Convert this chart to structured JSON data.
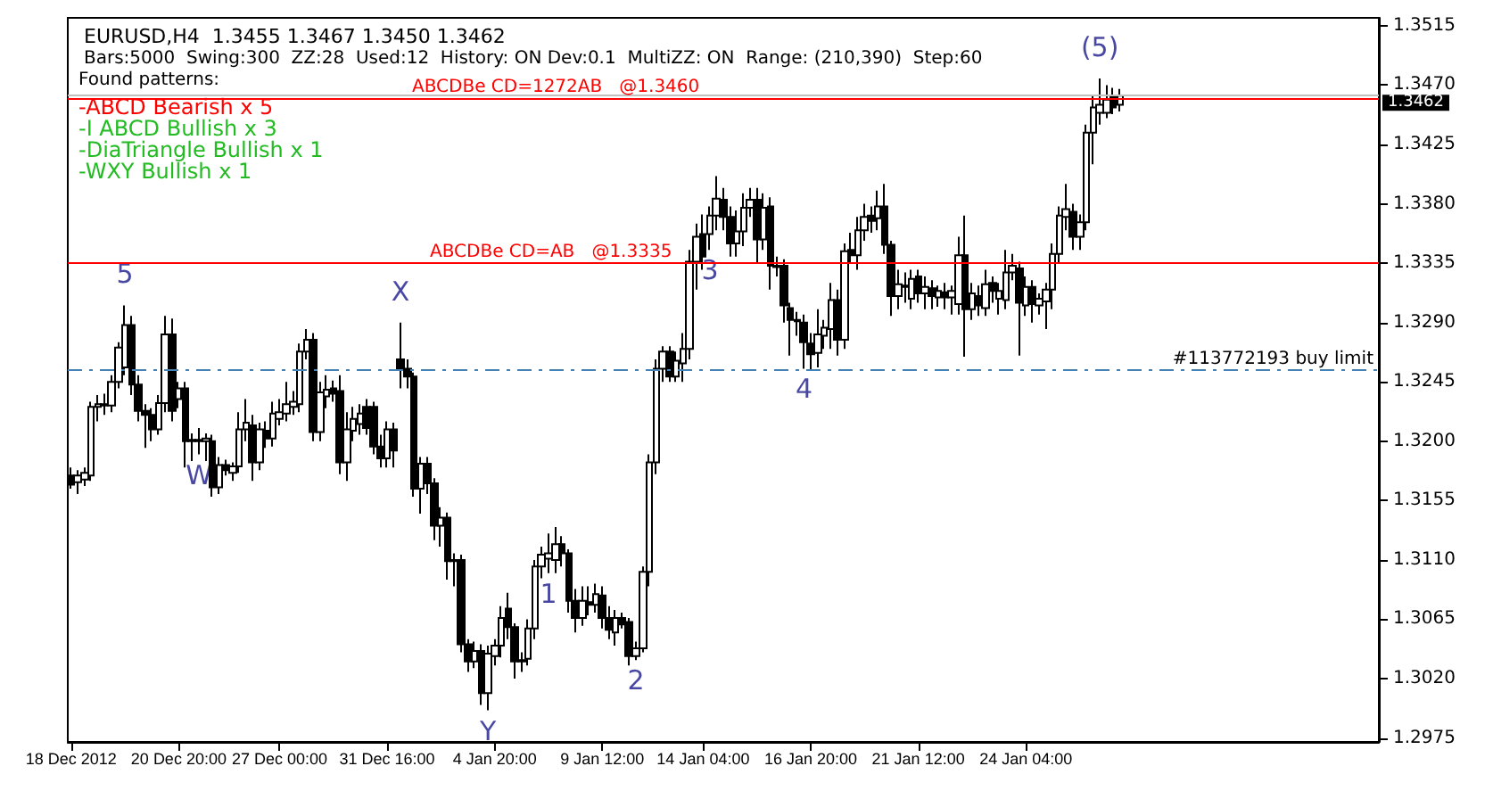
{
  "chart_data": {
    "type": "candlestick",
    "title": "EURUSD,H4  1.3455 1.3467 1.3450 1.3462",
    "subtitle": "Bars:5000  Swing:300  ZZ:28  Used:12  History: ON Dev:0.1  MultiZZ: ON  Range: (210,390)  Step:60",
    "annotations": [
      "Found patterns:",
      "-ABCD Bearish x 5",
      "-I ABCD Bullish x 3",
      "-DiaTriangle Bullish x 1",
      "-WXY Bullish x 1"
    ],
    "color": "#000000",
    "categories": [
      "18 Dec 2012",
      null,
      null,
      null,
      null,
      null,
      null,
      null,
      null,
      null,
      null,
      null,
      null,
      null,
      null,
      null,
      "20 Dec 20:00",
      null,
      null,
      null,
      null,
      null,
      null,
      null,
      null,
      null,
      null,
      null,
      null,
      null,
      null,
      "27 Dec 00:00",
      null,
      null,
      null,
      null,
      null,
      null,
      null,
      null,
      null,
      null,
      null,
      null,
      null,
      null,
      null,
      "31 Dec 16:00",
      null,
      null,
      null,
      null,
      null,
      null,
      null,
      null,
      null,
      null,
      null,
      null,
      null,
      null,
      null,
      "4 Jan 20:00",
      null,
      null,
      null,
      null,
      null,
      null,
      null,
      null,
      null,
      null,
      null,
      null,
      null,
      null,
      null,
      "9 Jan 12:00",
      null,
      null,
      null,
      null,
      null,
      null,
      null,
      null,
      null,
      null,
      null,
      null,
      null,
      null,
      "14 Jan 04:00",
      null,
      null,
      null,
      null,
      null,
      null,
      null,
      null,
      null,
      null,
      null,
      null,
      null,
      null,
      null,
      "16 Jan 20:00",
      null,
      null,
      null,
      null,
      null,
      null,
      null,
      null,
      null,
      null,
      null,
      null,
      null,
      null,
      null,
      "21 Jan 12:00",
      null,
      null,
      null,
      null,
      null,
      null,
      null,
      null,
      null,
      null,
      null,
      null,
      null,
      null,
      null,
      "24 Jan 04:00",
      null,
      null,
      null,
      null,
      null,
      null,
      null,
      null,
      null,
      null,
      null,
      null,
      null,
      null,
      null,
      null,
      null,
      null,
      null,
      null,
      null,
      null,
      null,
      null,
      null,
      null,
      null,
      null,
      null,
      null,
      null,
      null,
      null,
      null,
      null,
      null,
      null,
      null,
      null,
      null,
      null,
      null,
      null,
      null,
      null,
      null,
      null,
      null,
      null,
      null,
      null,
      null
    ],
    "ohlc": [
      [
        1.3174,
        1.318,
        1.3164,
        1.3167
      ],
      [
        1.3169,
        1.3178,
        1.316,
        1.3174
      ],
      [
        1.3171,
        1.318,
        1.3166,
        1.3176
      ],
      [
        1.3174,
        1.323,
        1.317,
        1.3226
      ],
      [
        1.3226,
        1.3235,
        1.3215,
        1.3228
      ],
      [
        1.3228,
        1.3236,
        1.322,
        1.3227
      ],
      [
        1.3227,
        1.325,
        1.3222,
        1.3245
      ],
      [
        1.3245,
        1.3275,
        1.324,
        1.3271
      ],
      [
        1.3256,
        1.3303,
        1.325,
        1.3288
      ],
      [
        1.3288,
        1.3295,
        1.3235,
        1.3243
      ],
      [
        1.3243,
        1.325,
        1.3215,
        1.3223
      ],
      [
        1.3223,
        1.3228,
        1.3195,
        1.322
      ],
      [
        1.322,
        1.3225,
        1.32,
        1.3209
      ],
      [
        1.3209,
        1.3235,
        1.3205,
        1.3229
      ],
      [
        1.3229,
        1.3295,
        1.3222,
        1.3281
      ],
      [
        1.3281,
        1.3293,
        1.3215,
        1.3223
      ],
      [
        1.3232,
        1.3245,
        1.3225,
        1.324
      ],
      [
        1.324,
        1.3245,
        1.318,
        1.32
      ],
      [
        1.32,
        1.3206,
        1.3185,
        1.3201
      ],
      [
        1.3201,
        1.321,
        1.319,
        1.32
      ],
      [
        1.32,
        1.3206,
        1.3185,
        1.3202
      ],
      [
        1.32,
        1.3205,
        1.3158,
        1.3165
      ],
      [
        1.3165,
        1.3188,
        1.316,
        1.3182
      ],
      [
        1.3182,
        1.3186,
        1.3174,
        1.3178
      ],
      [
        1.3176,
        1.3184,
        1.317,
        1.3181
      ],
      [
        1.3181,
        1.3222,
        1.3176,
        1.3209
      ],
      [
        1.3209,
        1.3232,
        1.32,
        1.3214
      ],
      [
        1.3212,
        1.322,
        1.317,
        1.3184
      ],
      [
        1.3184,
        1.3214,
        1.3178,
        1.3209
      ],
      [
        1.3208,
        1.3215,
        1.3195,
        1.3202
      ],
      [
        1.3202,
        1.323,
        1.3196,
        1.3221
      ],
      [
        1.3217,
        1.3232,
        1.3212,
        1.3222
      ],
      [
        1.3221,
        1.3245,
        1.3215,
        1.3228
      ],
      [
        1.3226,
        1.3238,
        1.322,
        1.323
      ],
      [
        1.3228,
        1.3274,
        1.3222,
        1.3268
      ],
      [
        1.3268,
        1.3285,
        1.3262,
        1.3277
      ],
      [
        1.3277,
        1.3282,
        1.32,
        1.3207
      ],
      [
        1.3207,
        1.3245,
        1.32,
        1.3237
      ],
      [
        1.3234,
        1.325,
        1.3225,
        1.3239
      ],
      [
        1.324,
        1.3246,
        1.323,
        1.3236
      ],
      [
        1.3238,
        1.325,
        1.3175,
        1.3184
      ],
      [
        1.3184,
        1.3222,
        1.317,
        1.3209
      ],
      [
        1.3208,
        1.3226,
        1.32,
        1.3217
      ],
      [
        1.3213,
        1.3228,
        1.3205,
        1.3221
      ],
      [
        1.3226,
        1.3232,
        1.3205,
        1.321
      ],
      [
        1.3226,
        1.323,
        1.319,
        1.3196
      ],
      [
        1.3196,
        1.3205,
        1.318,
        1.3187
      ],
      [
        1.3187,
        1.3215,
        1.318,
        1.3209
      ],
      [
        1.3209,
        1.3214,
        1.318,
        1.3193
      ],
      [
        1.3262,
        1.329,
        1.324,
        1.3255
      ],
      [
        1.3255,
        1.3262,
        1.324,
        1.3249
      ],
      [
        1.3249,
        1.3252,
        1.3158,
        1.3164
      ],
      [
        1.3164,
        1.3188,
        1.3145,
        1.3183
      ],
      [
        1.3183,
        1.3188,
        1.316,
        1.3168
      ],
      [
        1.3168,
        1.3172,
        1.3125,
        1.3136
      ],
      [
        1.3136,
        1.315,
        1.312,
        1.3142
      ],
      [
        1.3142,
        1.3146,
        1.3095,
        1.3109
      ],
      [
        1.3109,
        1.3115,
        1.309,
        1.311
      ],
      [
        1.311,
        1.3114,
        1.304,
        1.3046
      ],
      [
        1.3046,
        1.305,
        1.3025,
        1.3033
      ],
      [
        1.3033,
        1.3048,
        1.3028,
        1.3041
      ],
      [
        1.3041,
        1.3046,
        1.3,
        1.3009
      ],
      [
        1.3009,
        1.3045,
        1.2996,
        1.3039
      ],
      [
        1.3037,
        1.305,
        1.303,
        1.3045
      ],
      [
        1.3045,
        1.3075,
        1.3036,
        1.3066
      ],
      [
        1.3073,
        1.3085,
        1.305,
        1.3059
      ],
      [
        1.3059,
        1.3062,
        1.302,
        1.3033
      ],
      [
        1.3033,
        1.304,
        1.3025,
        1.3034
      ],
      [
        1.3035,
        1.3065,
        1.303,
        1.3058
      ],
      [
        1.3058,
        1.311,
        1.305,
        1.3105
      ],
      [
        1.3105,
        1.312,
        1.3096,
        1.3114
      ],
      [
        1.3111,
        1.313,
        1.31,
        1.3115
      ],
      [
        1.311,
        1.3135,
        1.31,
        1.3122
      ],
      [
        1.3122,
        1.3128,
        1.3105,
        1.3115
      ],
      [
        1.3115,
        1.3118,
        1.307,
        1.3079
      ],
      [
        1.3079,
        1.3088,
        1.3055,
        1.3066
      ],
      [
        1.3066,
        1.309,
        1.306,
        1.3079
      ],
      [
        1.3078,
        1.309,
        1.3068,
        1.3076
      ],
      [
        1.3076,
        1.3092,
        1.307,
        1.3084
      ],
      [
        1.3083,
        1.309,
        1.3058,
        1.3066
      ],
      [
        1.3066,
        1.3075,
        1.305,
        1.3057
      ],
      [
        1.3055,
        1.3072,
        1.3045,
        1.3066
      ],
      [
        1.3066,
        1.307,
        1.3058,
        1.3061
      ],
      [
        1.3063,
        1.3066,
        1.303,
        1.3037
      ],
      [
        1.3037,
        1.3048,
        1.3034,
        1.3043
      ],
      [
        1.3043,
        1.3105,
        1.304,
        1.3101
      ],
      [
        1.3101,
        1.319,
        1.309,
        1.3184
      ],
      [
        1.3184,
        1.3262,
        1.3175,
        1.3255
      ],
      [
        1.3255,
        1.3272,
        1.3245,
        1.3268
      ],
      [
        1.3268,
        1.3272,
        1.3245,
        1.3249
      ],
      [
        1.3249,
        1.3268,
        1.3245,
        1.3261
      ],
      [
        1.3259,
        1.3282,
        1.3245,
        1.327
      ],
      [
        1.327,
        1.3345,
        1.3262,
        1.3336
      ],
      [
        1.3336,
        1.3365,
        1.3315,
        1.3355
      ],
      [
        1.3357,
        1.3372,
        1.333,
        1.334
      ],
      [
        1.3357,
        1.3378,
        1.3345,
        1.3371
      ],
      [
        1.3371,
        1.3401,
        1.336,
        1.3384
      ],
      [
        1.3383,
        1.3392,
        1.336,
        1.337
      ],
      [
        1.337,
        1.3378,
        1.334,
        1.335
      ],
      [
        1.335,
        1.3375,
        1.334,
        1.3359
      ],
      [
        1.3359,
        1.3388,
        1.3348,
        1.3377
      ],
      [
        1.3377,
        1.3392,
        1.337,
        1.3383
      ],
      [
        1.3383,
        1.3392,
        1.3335,
        1.3353
      ],
      [
        1.3353,
        1.3388,
        1.3345,
        1.3377
      ],
      [
        1.3378,
        1.3385,
        1.3315,
        1.3333
      ],
      [
        1.3333,
        1.334,
        1.3325,
        1.3332
      ],
      [
        1.3333,
        1.3338,
        1.329,
        1.3303
      ],
      [
        1.3301,
        1.3305,
        1.3265,
        1.3292
      ],
      [
        1.3292,
        1.3298,
        1.328,
        1.3291
      ],
      [
        1.329,
        1.3296,
        1.3255,
        1.3275
      ],
      [
        1.3274,
        1.3282,
        1.3254,
        1.3266
      ],
      [
        1.3267,
        1.33,
        1.3256,
        1.3281
      ],
      [
        1.328,
        1.3292,
        1.327,
        1.3286
      ],
      [
        1.3285,
        1.332,
        1.327,
        1.3307
      ],
      [
        1.3307,
        1.3315,
        1.3265,
        1.3277
      ],
      [
        1.3277,
        1.335,
        1.327,
        1.3344
      ],
      [
        1.3345,
        1.3358,
        1.3335,
        1.3341
      ],
      [
        1.3341,
        1.337,
        1.333,
        1.336
      ],
      [
        1.336,
        1.338,
        1.3352,
        1.337
      ],
      [
        1.3371,
        1.3378,
        1.3358,
        1.3367
      ],
      [
        1.3369,
        1.339,
        1.336,
        1.3378
      ],
      [
        1.3378,
        1.3395,
        1.3342,
        1.3349
      ],
      [
        1.3349,
        1.3352,
        1.3295,
        1.331
      ],
      [
        1.331,
        1.333,
        1.33,
        1.3319
      ],
      [
        1.3318,
        1.3328,
        1.3305,
        1.3317
      ],
      [
        1.3308,
        1.333,
        1.33,
        1.3323
      ],
      [
        1.3325,
        1.333,
        1.3305,
        1.3312
      ],
      [
        1.3312,
        1.3325,
        1.33,
        1.3317
      ],
      [
        1.3316,
        1.3322,
        1.33,
        1.331
      ],
      [
        1.3309,
        1.3318,
        1.3302,
        1.3314
      ],
      [
        1.3313,
        1.332,
        1.33,
        1.3309
      ],
      [
        1.3309,
        1.3318,
        1.3296,
        1.3314
      ],
      [
        1.3304,
        1.3355,
        1.3296,
        1.3341
      ],
      [
        1.3341,
        1.3371,
        1.3264,
        1.33
      ],
      [
        1.33,
        1.332,
        1.3292,
        1.3312
      ],
      [
        1.331,
        1.3318,
        1.3295,
        1.3303
      ],
      [
        1.3301,
        1.333,
        1.3295,
        1.3319
      ],
      [
        1.332,
        1.3325,
        1.3305,
        1.3314
      ],
      [
        1.3308,
        1.332,
        1.3296,
        1.3314
      ],
      [
        1.3307,
        1.3345,
        1.33,
        1.3328
      ],
      [
        1.3328,
        1.3342,
        1.3322,
        1.3333
      ],
      [
        1.3331,
        1.3336,
        1.3265,
        1.3305
      ],
      [
        1.3303,
        1.3325,
        1.3295,
        1.3317
      ],
      [
        1.3317,
        1.3322,
        1.329,
        1.3304
      ],
      [
        1.3303,
        1.3312,
        1.3296,
        1.3308
      ],
      [
        1.3306,
        1.332,
        1.3285,
        1.3315
      ],
      [
        1.3315,
        1.335,
        1.33,
        1.3342
      ],
      [
        1.3342,
        1.3378,
        1.3335,
        1.3371
      ],
      [
        1.337,
        1.3395,
        1.336,
        1.3376
      ],
      [
        1.3374,
        1.338,
        1.3345,
        1.3355
      ],
      [
        1.3355,
        1.3372,
        1.3345,
        1.3366
      ],
      [
        1.3366,
        1.344,
        1.336,
        1.3434
      ],
      [
        1.3434,
        1.3462,
        1.341,
        1.3453
      ],
      [
        1.3449,
        1.3475,
        1.344,
        1.3455
      ],
      [
        1.3449,
        1.347,
        1.3445,
        1.3459
      ],
      [
        1.3462,
        1.3468,
        1.3448,
        1.3453
      ],
      [
        1.3455,
        1.3467,
        1.345,
        1.3462
      ],
      null,
      null,
      null,
      null,
      null,
      null,
      null,
      null,
      null,
      null,
      null,
      null,
      null,
      null,
      null,
      null,
      null,
      null,
      null,
      null,
      null,
      null,
      null,
      null,
      null,
      null,
      null,
      null,
      null,
      null,
      null,
      null,
      null,
      null,
      null,
      null,
      null,
      null
    ],
    "value_labels": [
      null,
      null,
      null,
      null,
      null,
      null,
      null,
      null,
      "5",
      null,
      null,
      null,
      null,
      null,
      null,
      null,
      null,
      null,
      null,
      "W",
      null,
      null,
      null,
      null,
      null,
      null,
      null,
      null,
      null,
      null,
      null,
      null,
      null,
      null,
      null,
      null,
      null,
      null,
      null,
      null,
      null,
      null,
      null,
      null,
      null,
      null,
      null,
      null,
      null,
      "X",
      null,
      null,
      null,
      null,
      null,
      null,
      null,
      null,
      null,
      null,
      null,
      null,
      "Y",
      null,
      null,
      null,
      null,
      null,
      null,
      null,
      null,
      "1",
      null,
      null,
      null,
      null,
      null,
      null,
      null,
      null,
      null,
      null,
      null,
      null,
      "2",
      null,
      null,
      null,
      null,
      null,
      null,
      null,
      null,
      null,
      null,
      "3",
      null,
      null,
      null,
      null,
      null,
      null,
      null,
      null,
      null,
      null,
      null,
      null,
      null,
      "4",
      null,
      null,
      null,
      null,
      null,
      null,
      null,
      null,
      null,
      null,
      null,
      null,
      null,
      null,
      null,
      null,
      null,
      null,
      null,
      null,
      null,
      null,
      null,
      null,
      null,
      null,
      null,
      null,
      null,
      null,
      null,
      null,
      null,
      null,
      null,
      null,
      null,
      null,
      null,
      null,
      null,
      null,
      null,
      "(5)",
      null,
      null,
      null,
      null,
      null,
      null,
      null,
      null,
      null,
      null,
      null,
      null,
      null,
      null,
      null,
      null,
      null,
      null,
      null,
      null,
      null,
      null,
      null,
      null,
      null,
      null,
      null,
      null,
      null,
      null,
      null,
      null,
      null,
      null,
      null,
      null,
      null,
      null,
      null,
      null,
      null
    ],
    "ylim": [
      1.2972,
      1.3521
    ],
    "yticks": [
      {
        "value": 1.2975,
        "label": "1.2975"
      },
      {
        "value": 1.302,
        "label": "1.3020"
      },
      1.3065,
      {
        "value": 1.311,
        "label": "1.3110"
      },
      1.3155,
      {
        "value": 1.32,
        "label": "1.3200"
      },
      1.3245,
      {
        "value": 1.329,
        "label": "1.3290"
      },
      1.3335,
      {
        "value": 1.338,
        "label": "1.3380"
      },
      1.3425,
      {
        "value": 1.347,
        "label": "1.3470"
      },
      1.3515
    ],
    "ref_lines": [
      {
        "axis": "y",
        "value": 1.3462,
        "label": "1.3462",
        "color": "#c0c0c0"
      },
      {
        "axis": "y",
        "value": 1.346,
        "label": "ABCDBe CD=1272AB   @1.3460",
        "color": "#ff0000"
      },
      {
        "axis": "y",
        "value": 1.3335,
        "label": "ABCDBe CD=AB   @1.3335",
        "color": "#ff0000"
      },
      {
        "axis": "y",
        "value": 1.3254,
        "label": "#113772193 buy limit",
        "color": "#4682b4",
        "line_style": "dashed"
      }
    ],
    "grid": false
  }
}
